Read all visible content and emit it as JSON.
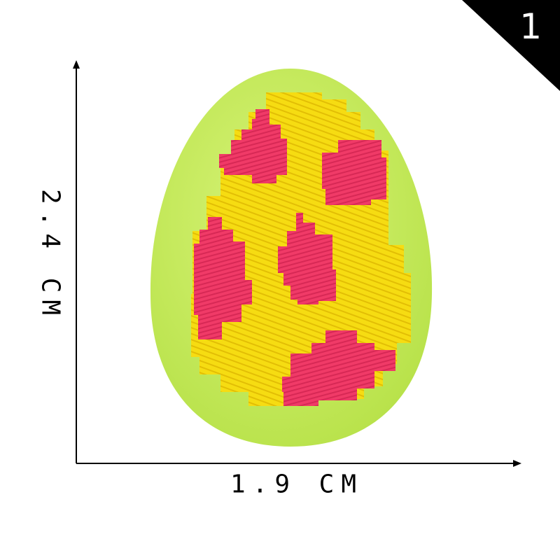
{
  "badge": {
    "number": "1"
  },
  "dimensions": {
    "height_label": "2.4 CM",
    "width_label": "1.9 CM"
  },
  "product": {
    "felt_color": "#c9ee5a",
    "base_color": "#f6dc12",
    "spot_color": "#f03a67"
  }
}
